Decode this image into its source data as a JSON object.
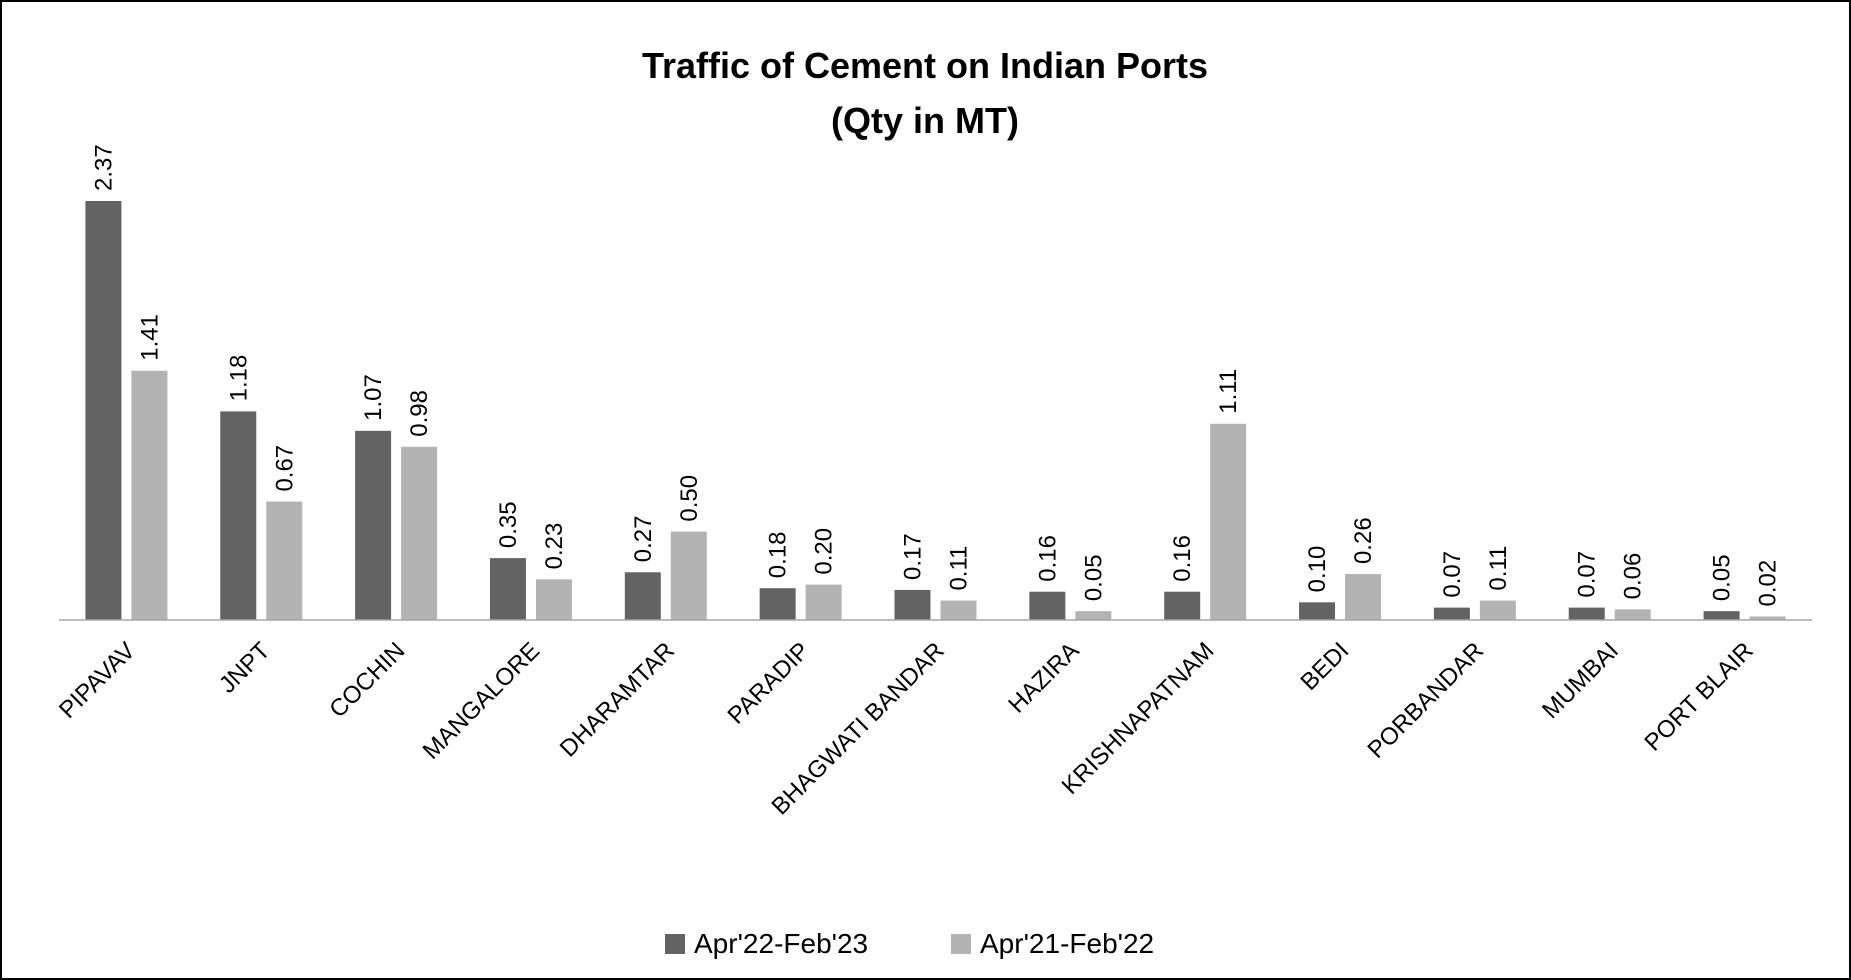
{
  "chart_data": {
    "type": "bar",
    "title": "Traffic of Cement on Indian Ports",
    "subtitle": "(Qty in MT)",
    "categories": [
      "PIPAVAV",
      "JNPT",
      "COCHIN",
      "MANGALORE",
      "DHARAMTAR",
      "PARADIP",
      "BHAGWATI BANDAR",
      "HAZIRA",
      "KRISHNAPATNAM",
      "BEDI",
      "PORBANDAR",
      "MUMBAI",
      "PORT BLAIR"
    ],
    "series": [
      {
        "name": "Apr'22-Feb'23",
        "color": "#636363",
        "values": [
          2.37,
          1.18,
          1.07,
          0.35,
          0.27,
          0.18,
          0.17,
          0.16,
          0.16,
          0.1,
          0.07,
          0.07,
          0.05
        ],
        "value_labels": [
          "2.37",
          "1.18",
          "1.07",
          "0.35",
          "0.27",
          "0.18",
          "0.17",
          "0.16",
          "0.16",
          "0.10",
          "0.07",
          "0.07",
          "0.05"
        ]
      },
      {
        "name": "Apr'21-Feb'22",
        "color": "#b3b3b3",
        "values": [
          1.41,
          0.67,
          0.98,
          0.23,
          0.5,
          0.2,
          0.11,
          0.05,
          1.11,
          0.26,
          0.11,
          0.06,
          0.02
        ],
        "value_labels": [
          "1.41",
          "0.67",
          "0.98",
          "0.23",
          "0.50",
          "0.20",
          "0.11",
          "0.05",
          "1.11",
          "0.26",
          "0.11",
          "0.06",
          "0.02"
        ]
      }
    ],
    "legend": "bottom"
  }
}
